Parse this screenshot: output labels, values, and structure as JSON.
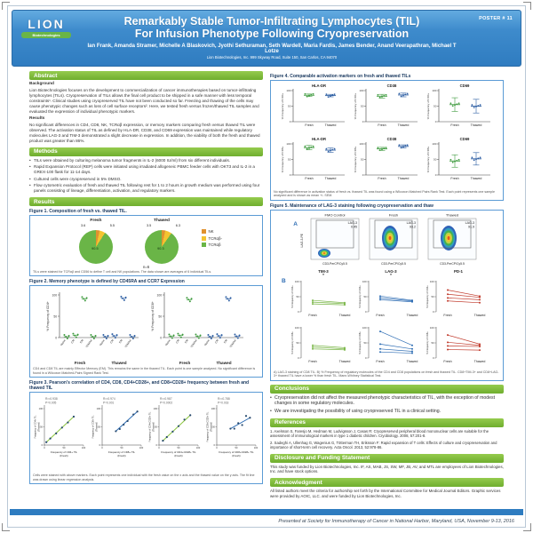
{
  "poster": {
    "badge": "POSTER # 11",
    "logo": {
      "name": "LION",
      "sub": "Biotechnologies"
    },
    "title_line1": "Remarkably Stable Tumor-Infiltrating Lymphocytes (TIL)",
    "title_line2": "For Infusion Phenotype Following Cryopreservation",
    "authors": "Ian Frank, Amanda Stramer, Michelle A Blaskovich, Jyothi Sethuraman, Seth Wardell, Maria Fardis, James Bender, Anand Veerapathran, Michael T Lotze",
    "affiliation": "Lion Biotechnologies, Inc. 999 Skyway Road, Suite 150, San Carlos, CA 94070",
    "footer": "Presented at Society for Immunotherapy of Cancer in National Harbor, Maryland, USA, November 9-13, 2016"
  },
  "colors": {
    "header_blue": "#3e8bcc",
    "section_green": "#7ab648",
    "figure_border": "#5b9bd5",
    "footer_blue": "#2e7cc0",
    "fresh_green": "#3f9b3f",
    "thawed_blue": "#2e5fa3"
  },
  "sections": {
    "abstract": {
      "heading": "Abstract",
      "background_label": "Background",
      "background_text": "Lion Biotechnologies focuses on the development to commercialization of cancer immunotherapies based on tumor-infiltrating lymphocytes (TILs). Cryopreservation of TILs allows the final cell product to be shipped in a safe manner with less temporal constraints¹. Clinical studies using cryopreserved TIL have not been conducted so far. Freezing and thawing of the cells may cause phenotypic changes such as loss of cell surface receptors². Here, we tested fresh versus frozen/thawed TIL samples and evaluated the expression of individual phenotypic markers.",
      "results_label": "Results",
      "results_text": "No significant differences in CD4, CD8, NK, TCRαβ expression, or memory markers comparing fresh versus thawed TIL were observed. The activation status of TIL as defined by HLA-DR, CD38, and CD69 expression was maintained while regulatory molecules LAG-3 and TIM-3 demonstrated a slight decrease in expression. In addition, the viability of both the fresh and thawed product was greater than 86%."
    },
    "methods": {
      "heading": "Methods",
      "bullets": [
        "TILs were obtained by culturing melanoma tumor fragments in IL-2 (6000 IU/ml) from six different individuals.",
        "Rapid Expansion Protocol (REP) cells were initiated using irradiated allogeneic PBMC feeder cells with OKT3 and IL-2 in a GREX-100 flask for 11-14 days.",
        "Cultured cells were cryopreserved in 5% DMSO.",
        "Flow cytometric evaluation of fresh and thawed TIL following rest for 1 to 2 hours in growth medium was performed using four panels consisting of lineage, differentiation, activation, and regulatory markers."
      ]
    },
    "results_heading": "Results",
    "conclusions": {
      "heading": "Conclusions",
      "bullets": [
        "Cryopreservation did not affect the measured phenotypic characteristics of TIL, with the exception of modest changes in some regulatory molecules.",
        "We are investigating the possibility of using cryopreserved TIL in a clinical setting."
      ]
    },
    "references": {
      "heading": "References",
      "items": [
        "1. Axelsson S, Faresjo M, Hedman M, Ludvigsson J, Casas R: Cryopreserved peripheral blood mononuclear cells are suitable for the assessment of immunological markers in type 1 diabetic children. Cryobiology. 2008, 57:201-8.",
        "2. Sadeghi A, Ullenhag G, Wagenius G, Tötterman TH, Eriksson F: Rapid expansion of T cells: Effects of culture and cryopreservation and importance of short-term cell recovery. Acta Oncol. 2013, 52:978-86."
      ]
    },
    "disclosure": {
      "heading": "Disclosure and Funding Statement",
      "text": "This study was funded by Lion Biotechnologies, Inc. IF, AS, MAB, JS, SW, MF, JB, AV, and MTL are employees of Lion Biotechnologies, Inc. and have stock options."
    },
    "acknowledgment": {
      "heading": "Acknowledgment",
      "text": "All listed authors meet the criteria for authorship set forth by the International Committee for Medical Journal Editors. Graphic services were provided by AOIC, LLC. and were funded by Lion Biotechnologies, Inc."
    }
  },
  "chart_data": [
    {
      "id": "fig1",
      "type": "pie",
      "title": "Figure 1. Composition of fresh vs. thawed TIL.",
      "pies": [
        {
          "label": "Fresh",
          "slices": [
            {
              "name": "NK",
              "value": 3.6
            },
            {
              "name": "TCRαβ-",
              "value": 5.5
            },
            {
              "name": "TCRαβ",
              "value": 90.5
            }
          ]
        },
        {
          "label": "Thawed",
          "slices": [
            {
              "name": "NK",
              "value": 3.5
            },
            {
              "name": "TCRαβ-",
              "value": 6.3
            },
            {
              "name": "TCRαβ",
              "value": 90.3
            }
          ]
        }
      ],
      "legend": [
        {
          "label": "NK",
          "color": "#e0922f"
        },
        {
          "label": "TCRαβ-",
          "color": "#f4c430"
        },
        {
          "label": "TCRαβ",
          "color": "#6ab547"
        }
      ],
      "note": "n=6",
      "caption": "TILs were stained for TCRαβ and CD56 to define T cell and NK populations. The data shown are averages of 6 individual TILs."
    },
    {
      "id": "fig2",
      "type": "scatter",
      "title": "Figure 2. Memory phenotype is defined by CD45RA and CCR7 Expression",
      "groups": [
        "Fresh",
        "Thawed"
      ],
      "panels": [
        {
          "ylabel": "% Frequency of CD4+",
          "categories": [
            "Naïve",
            "CM",
            "EM",
            "TEMRA"
          ],
          "fresh": [
            2,
            5,
            91,
            2
          ],
          "thawed": [
            2,
            4,
            92,
            2
          ]
        },
        {
          "ylabel": "% Frequency of CD8+",
          "categories": [
            "Naïve",
            "CM",
            "EM",
            "TEMRA"
          ],
          "fresh": [
            3,
            5,
            89,
            3
          ],
          "thawed": [
            2,
            4,
            91,
            3
          ]
        }
      ],
      "ylim": [
        0,
        100
      ],
      "caption": "CD4 and CD8 TIL are mainly Effector Memory (EM). This remains the same in the thawed TIL. Each point is one sample analyzed. No significant difference is found in a Wilcoxon Matched-Pairs Signed Rank Test."
    },
    {
      "id": "fig3",
      "type": "scatter",
      "title": "Figure 3. Pearson's correlation of CD4, CD8, CD4+CD28+, and CD8+CD28+ frequency between fresh and thawed TIL",
      "panels": [
        {
          "xlabel": "Frequency of CD4+ TIL (Fresh)",
          "ylabel": "Frequency of CD4+ TIL (Thawed)",
          "r2": "R²=0.938",
          "p": "P=0.005",
          "color": "#8cc63f",
          "points": [
            [
              5,
              8
            ],
            [
              15,
              18
            ],
            [
              30,
              32
            ],
            [
              45,
              48
            ],
            [
              60,
              62
            ],
            [
              75,
              78
            ]
          ]
        },
        {
          "xlabel": "Frequency of CD8+ TIL (Fresh)",
          "ylabel": "Frequency of CD8+ TIL (Thawed)",
          "r2": "R²=0.974",
          "p": "P=0.001",
          "color": "#2e6db4",
          "points": [
            [
              35,
              38
            ],
            [
              45,
              44
            ],
            [
              55,
              56
            ],
            [
              65,
              66
            ],
            [
              80,
              84
            ],
            [
              90,
              92
            ]
          ]
        },
        {
          "xlabel": "Frequency of CD4+CD28+ TIL (Fresh)",
          "ylabel": "Frequency of CD4+CD28+ TIL (Thawed)",
          "r2": "R²=0.987",
          "p": "P=0.0002",
          "color": "#8cc63f",
          "points": [
            [
              10,
              12
            ],
            [
              20,
              22
            ],
            [
              35,
              37
            ],
            [
              50,
              52
            ],
            [
              65,
              70
            ],
            [
              80,
              82
            ]
          ]
        },
        {
          "xlabel": "Frequency of CD8+CD28+ TIL (Fresh)",
          "ylabel": "Frequency of CD8+CD28+ TIL (Thawed)",
          "r2": "R²=0.788",
          "p": "P=0.018",
          "color": "#2e6db4",
          "points": [
            [
              35,
              45
            ],
            [
              45,
              45
            ],
            [
              55,
              60
            ],
            [
              65,
              55
            ],
            [
              75,
              80
            ],
            [
              85,
              75
            ]
          ]
        }
      ],
      "caption": "Cells were stained with above markers. Each point represents one individual with the fresh value on the x axis and the thawed value on the y axis. The fit line was drawn using linear regression analysis."
    },
    {
      "id": "fig4",
      "type": "scatter",
      "title": "Figure 4. Comparable activation markers on fresh and thawed TILs",
      "xticks": [
        "Fresh",
        "Thawed"
      ],
      "rows": [
        {
          "ylabel": "% Frequency of CD4+",
          "panels": [
            {
              "title": "HLA-DR",
              "fresh": 85,
              "thawed": 84,
              "spread": 4
            },
            {
              "title": "CD38",
              "fresh": 82,
              "thawed": 86,
              "spread": 6
            },
            {
              "title": "CD69",
              "fresh": 55,
              "thawed": 50,
              "spread": 22
            }
          ]
        },
        {
          "ylabel": "% Frequency of CD8+",
          "panels": [
            {
              "title": "HLA-DR",
              "fresh": 88,
              "thawed": 80,
              "spread": 7
            },
            {
              "title": "CD38",
              "fresh": 84,
              "thawed": 92,
              "spread": 5
            },
            {
              "title": "CD69",
              "fresh": 45,
              "thawed": 52,
              "spread": 20
            }
          ]
        }
      ],
      "caption": "No significant difference in activation status of fresh vs. thawed TIL was found using a Wilcoxon Matched Pairs Rank Test. Each point represents one sample analyzed and is shown as mean +/- SEM."
    },
    {
      "id": "fig5",
      "type": "scatter",
      "title": "Figure 5. Maintenance of LAG-3 staining following cryopreservation and thaw",
      "panelA": {
        "label": "A",
        "ylabel": "LAG-3-PE",
        "xlabel": "CD3-PerCP/Cy5.5",
        "plots": [
          {
            "title": "FMO Control",
            "gate": "LAG-3",
            "value": "0.45",
            "blob": "low"
          },
          {
            "title": "Fresh",
            "gate": "LAG-3",
            "value": "93.2",
            "blob": "high"
          },
          {
            "title": "Thawed",
            "gate": "LAG-3",
            "value": "91.9",
            "blob": "high"
          }
        ]
      },
      "panelB": {
        "label": "B",
        "columns": [
          {
            "title": "TIM-3",
            "sig": "*",
            "color": "#7ab648"
          },
          {
            "title": "LAG-3",
            "sig": "*",
            "color": "#2e6db4"
          },
          {
            "title": "PD-1",
            "sig": "",
            "color": "#c0392b"
          }
        ],
        "rows": [
          {
            "ylabel": "% Frequency of CD4+",
            "xticks": [
              "Fresh",
              "Thawed"
            ],
            "pairs": [
              [
                [
                  38,
                  30
                ],
                [
                  32,
                  27
                ],
                [
                  26,
                  23
                ]
              ],
              [
                [
                  52,
                  38
                ],
                [
                  46,
                  36
                ],
                [
                  40,
                  33
                ]
              ],
              [
                [
                  72,
                  52
                ],
                [
                  58,
                  48
                ],
                [
                  46,
                  40
                ],
                [
                  36,
                  30
                ]
              ]
            ]
          },
          {
            "ylabel": "% Frequency of CD8+",
            "xticks": [
              "Fresh",
              "Thawed"
            ],
            "pairs": [
              [
                [
                  42,
                  34
                ],
                [
                  36,
                  30
                ],
                [
                  30,
                  27
                ]
              ],
              [
                [
                  88,
                  42
                ],
                [
                  46,
                  30
                ],
                [
                  30,
                  22
                ],
                [
                  20,
                  16
                ]
              ],
              [
                [
                  76,
                  46
                ],
                [
                  52,
                  42
                ],
                [
                  40,
                  38
                ],
                [
                  28,
                  26
                ]
              ]
            ]
          }
        ]
      },
      "caption": "A) LAG-3 staining of CD8 TIL. B) % Frequency of regulatory molecules of the CD4 and CD8 populations on fresh and thawed TIL. CD8+TIM-3+ and CD8+LAG-3+ thawed TIL have a lower % than fresh TIL. Mann-Whitney Statistical Test."
    }
  ]
}
